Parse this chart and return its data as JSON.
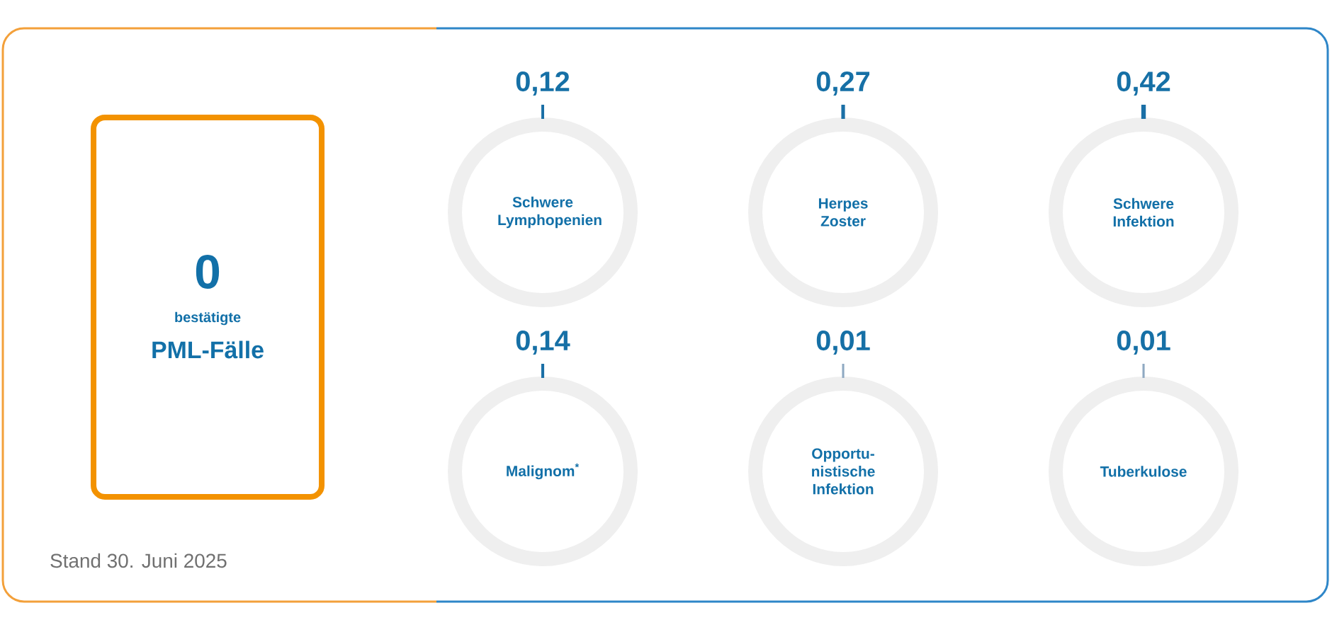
{
  "chart_data": [
    {
      "type": "other",
      "subtitle": "bestätigte",
      "title": "PML-Fälle",
      "color": "#f39200",
      "annotations": [
        "0",
        "Stand 30. Juni 2025"
      ]
    },
    {
      "type": "other",
      "categories": [
        "Schwere Lymphopenien"
      ],
      "values": [
        0.12
      ],
      "value_labels": [
        "0,12"
      ],
      "color": "#1a6fa6"
    },
    {
      "type": "other",
      "categories": [
        "Herpes Zoster"
      ],
      "values": [
        0.27
      ],
      "value_labels": [
        "0,27"
      ],
      "color": "#1a6fa6"
    },
    {
      "type": "other",
      "categories": [
        "Schwere Infektion"
      ],
      "values": [
        0.42
      ],
      "value_labels": [
        "0,42"
      ],
      "color": "#1a6fa6"
    },
    {
      "type": "other",
      "categories": [
        "Malignom$^{*}$"
      ],
      "values": [
        0.14
      ],
      "value_labels": [
        "0,14"
      ],
      "color": "#1a6fa6"
    },
    {
      "type": "other",
      "categories": [
        "Opportu-nistische Infektion"
      ],
      "values": [
        0.01
      ],
      "value_labels": [
        "0,01"
      ],
      "color": "#8fa9c2"
    },
    {
      "type": "other",
      "categories": [
        "Tuberkulose"
      ],
      "values": [
        0.01
      ],
      "value_labels": [
        "0,01"
      ],
      "color": "#8fa9c2"
    }
  ]
}
